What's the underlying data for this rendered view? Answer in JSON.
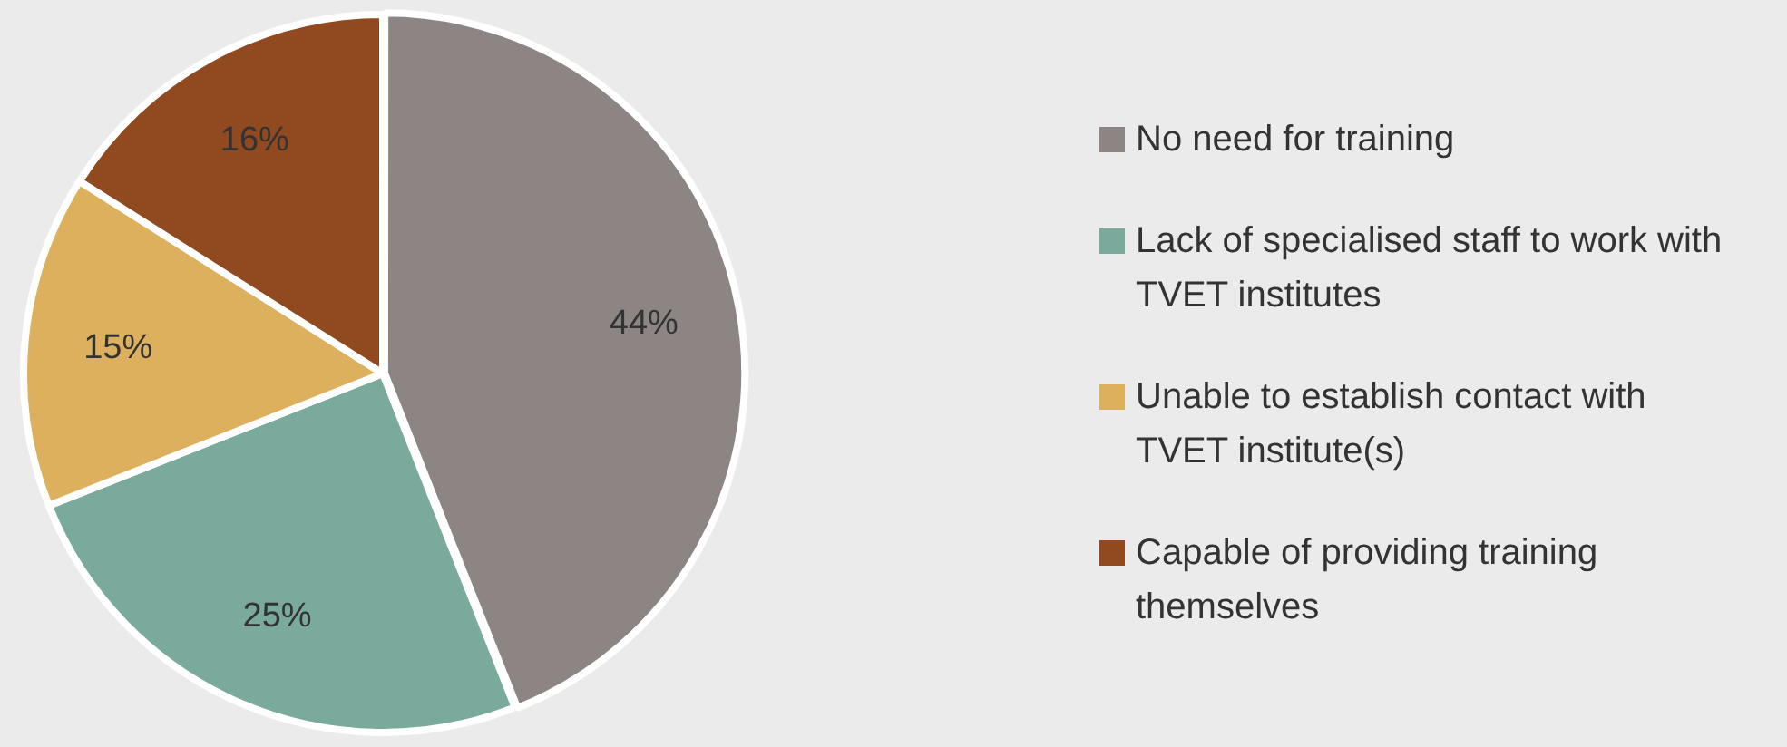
{
  "chart_data": {
    "type": "pie",
    "categories": [
      "No need for training",
      "Lack of specialised staff to work with TVET institutes",
      "Unable to establish contact with TVET institute(s)",
      "Capable of providing training themselves"
    ],
    "values": [
      44,
      25,
      15,
      16
    ],
    "colors": [
      "#8c8584",
      "#7aaa9c",
      "#dcb05c",
      "#914a20"
    ],
    "value_labels": [
      "44%",
      "25%",
      "15%",
      "16%"
    ],
    "legend": "right"
  }
}
